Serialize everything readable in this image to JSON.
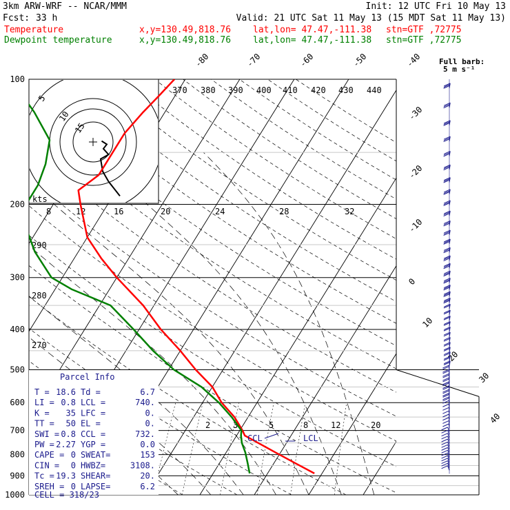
{
  "header": {
    "model": "3km ARW-WRF -- NCAR/MMM",
    "init": "Init: 12 UTC Fri 10 May 13",
    "fcst_label": "Fcst:",
    "fcst_value": "33 h",
    "valid": "Valid: 21 UTC Sat 11 May 13 (15 MDT Sat 11 May 13)",
    "temp_line": {
      "name": "Temperature",
      "xy": "x,y=130.49,818.76",
      "latlon": "lat,lon= 47.47,-111.38",
      "stn": "stn=GTF ,72775"
    },
    "dew_line": {
      "name": "Dewpoint temperature",
      "xy": "x,y=130.49,818.76",
      "latlon": "lat,lon= 47.47,-111.38",
      "stn": "stn=GTF ,72775"
    }
  },
  "colors": {
    "temperature": "#ff0000",
    "dewpoint": "#008000",
    "barbs": "#1a1a8c",
    "grid": "#000000"
  },
  "barb_legend": {
    "title": "Full barb:",
    "value": "5 m s⁻¹"
  },
  "chart_data": {
    "type": "line",
    "subtype": "skew-T log-P",
    "y_axis": {
      "scale": "log",
      "unit": "hPa",
      "ticks": [
        "100",
        "200",
        "300",
        "400",
        "500",
        "600",
        "700",
        "800",
        "900",
        "1000"
      ],
      "range": [
        1000,
        100
      ]
    },
    "isotherm_labels": [
      "-80",
      "-70",
      "-60",
      "-50",
      "-40",
      "-30",
      "-20",
      "-10",
      "0",
      "10",
      "20",
      "30",
      "40"
    ],
    "theta_labels": [
      "370",
      "380",
      "390",
      "400",
      "410",
      "420",
      "430",
      "440",
      "290",
      "280",
      "270"
    ],
    "mixing_ratio_labels": [
      "2",
      "3",
      "5",
      "8",
      "12",
      "20"
    ],
    "series": [
      {
        "name": "Temperature",
        "points": [
          [
            888,
            18.6
          ],
          [
            840,
            14
          ],
          [
            790,
            9
          ],
          [
            750,
            4.8
          ],
          [
            720,
            1.5
          ],
          [
            700,
            0.5
          ],
          [
            650,
            -2.5
          ],
          [
            600,
            -6.5
          ],
          [
            550,
            -10
          ],
          [
            500,
            -15
          ],
          [
            450,
            -20
          ],
          [
            400,
            -26
          ],
          [
            350,
            -32
          ],
          [
            300,
            -40
          ],
          [
            270,
            -45
          ],
          [
            240,
            -50
          ],
          [
            200,
            -55
          ],
          [
            185,
            -57
          ],
          [
            170,
            -55
          ],
          [
            150,
            -55
          ],
          [
            135,
            -55
          ],
          [
            120,
            -54
          ],
          [
            110,
            -53
          ],
          [
            100,
            -52
          ]
        ]
      },
      {
        "name": "Dewpoint temperature",
        "points": [
          [
            888,
            6.7
          ],
          [
            840,
            5.2
          ],
          [
            790,
            3.5
          ],
          [
            750,
            1.8
          ],
          [
            720,
            0.8
          ],
          [
            700,
            0.3
          ],
          [
            650,
            -3
          ],
          [
            600,
            -7
          ],
          [
            550,
            -12
          ],
          [
            500,
            -19
          ],
          [
            450,
            -25
          ],
          [
            400,
            -31
          ],
          [
            350,
            -38
          ],
          [
            320,
            -47
          ],
          [
            300,
            -52
          ],
          [
            260,
            -58
          ],
          [
            230,
            -62
          ],
          [
            215,
            -64
          ],
          [
            200,
            -65
          ],
          [
            180,
            -65
          ],
          [
            160,
            -66
          ],
          [
            140,
            -68
          ],
          [
            120,
            -74
          ],
          [
            100,
            -82
          ]
        ]
      }
    ],
    "annotations": [
      "CCL",
      "LCL"
    ]
  },
  "hodograph": {
    "ring_labels": [
      "5",
      "10",
      "15"
    ],
    "speed_axis_label": "kts",
    "speed_ticks": [
      "8",
      "12",
      "16",
      "20",
      "24",
      "28",
      "32"
    ],
    "trace": [
      [
        2.5,
        -0.5
      ],
      [
        4,
        1.2
      ],
      [
        3,
        3.5
      ],
      [
        4.5,
        6.5
      ],
      [
        2.2,
        8.8
      ],
      [
        2.8,
        15.2
      ],
      [
        4.5,
        20.5
      ],
      [
        7.8,
        28
      ]
    ]
  },
  "parcel_info": {
    "title": "Parcel Info",
    "rows": [
      {
        "k1": "T   =",
        "v1": "18.6",
        "k2": "Td  =",
        "v2": "6.7"
      },
      {
        "k1": "LI  =",
        "v1": "0.8",
        "k2": "LCL =",
        "v2": "740."
      },
      {
        "k1": "K   =",
        "v1": "35",
        "k2": "LFC =",
        "v2": "0."
      },
      {
        "k1": "TT  =",
        "v1": "50",
        "k2": "EL  =",
        "v2": "0."
      },
      {
        "k1": "SWI =",
        "v1": "0.8",
        "k2": "CCL =",
        "v2": "732."
      },
      {
        "k1": "PW  =",
        "v1": "2.27",
        "k2": "YGP =",
        "v2": "0.0"
      },
      {
        "k1": "CAPE =",
        "v1": "0",
        "k2": "SWEAT=",
        "v2": "153"
      },
      {
        "k1": "CIN =",
        "v1": "0",
        "k2": "HWBZ=",
        "v2": "3108."
      },
      {
        "k1": "Tc  =",
        "v1": "19.3",
        "k2": "SHEAR=",
        "v2": "20."
      },
      {
        "k1": "SREH =",
        "v1": "0",
        "k2": "LAPSE=",
        "v2": "6.2"
      }
    ],
    "cell": "CELL = 318/23"
  }
}
